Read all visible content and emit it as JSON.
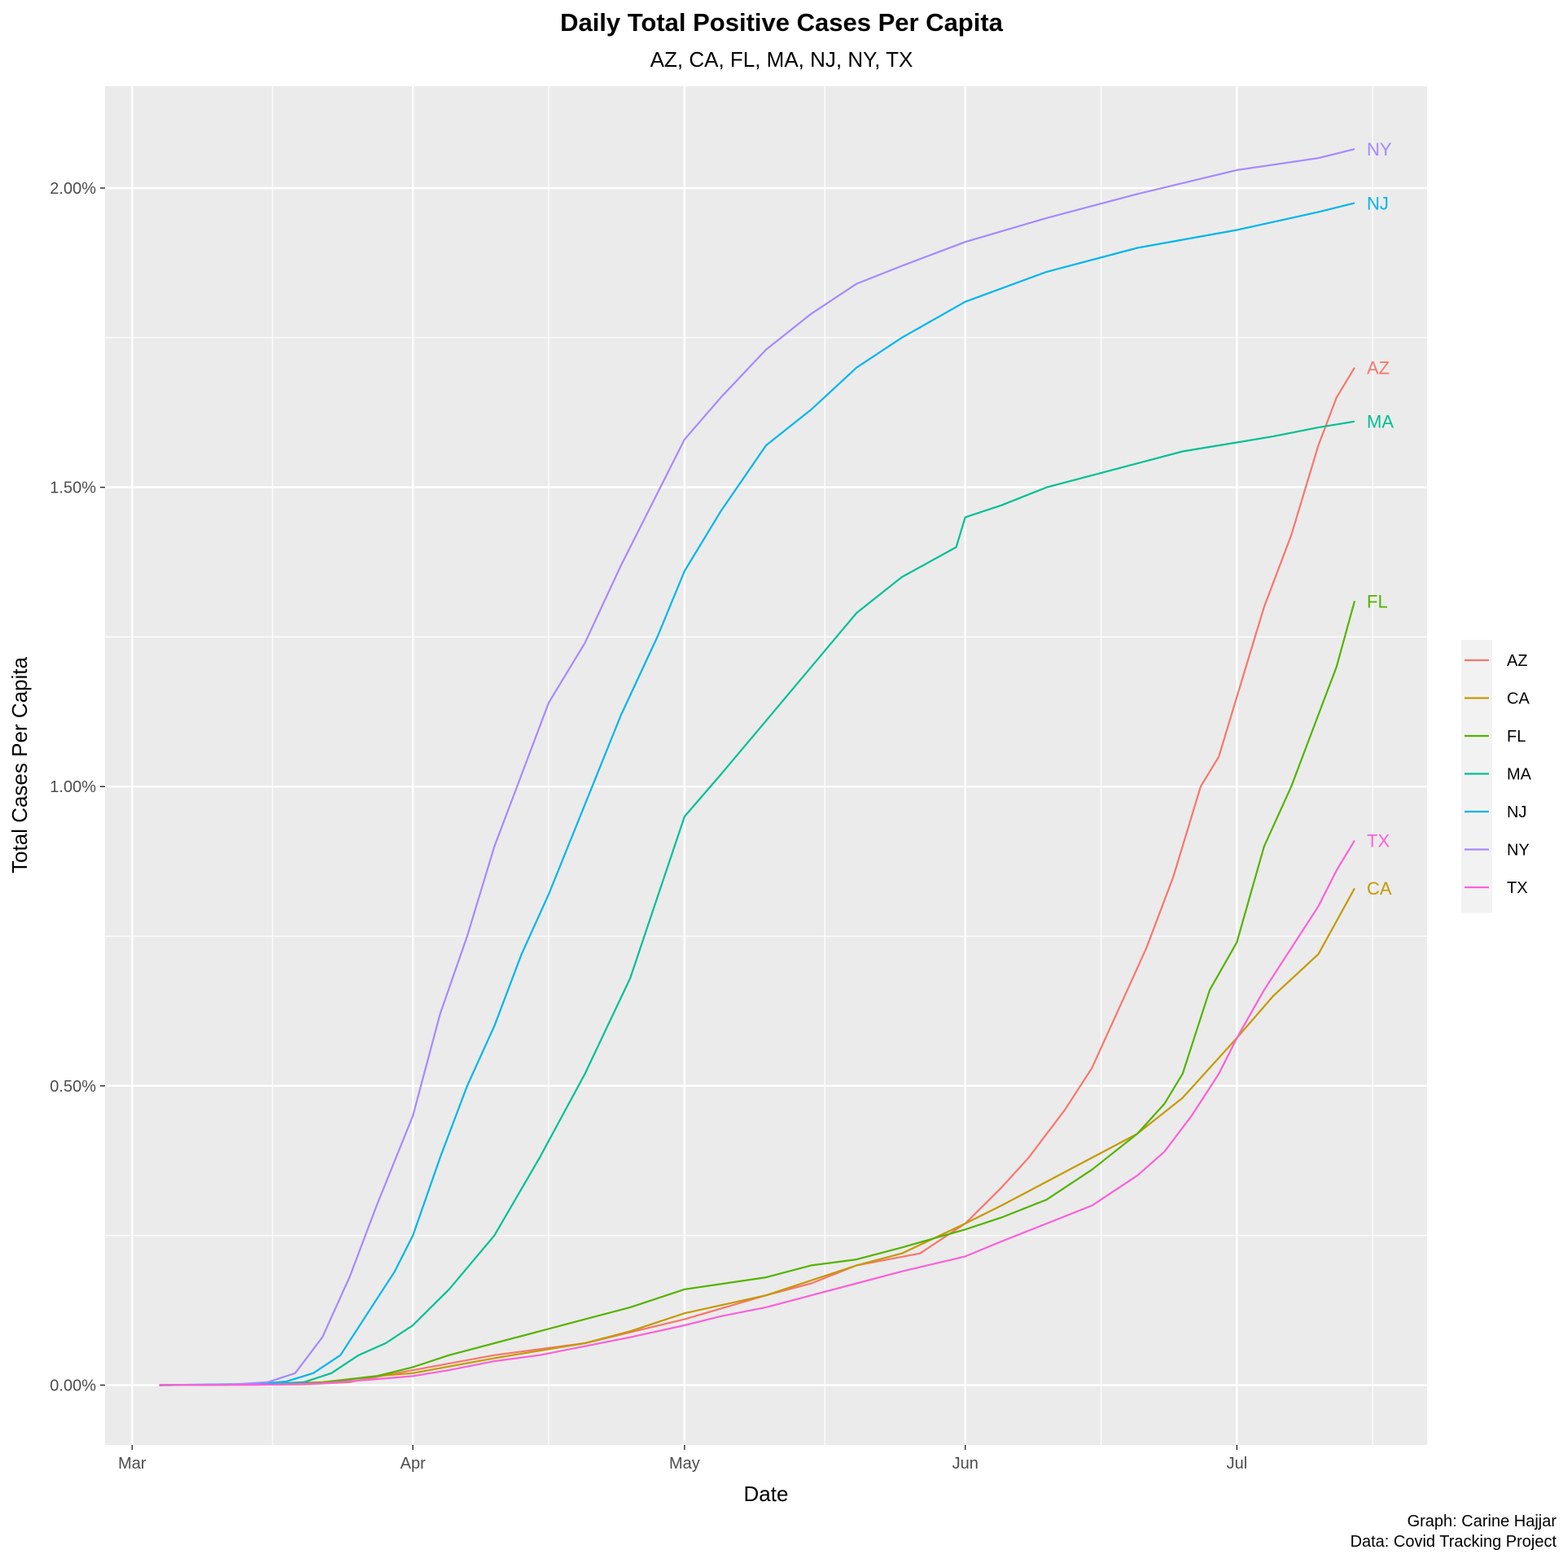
{
  "chart_data": {
    "type": "line",
    "title": "Daily Total Positive Cases Per Capita",
    "subtitle": "AZ, CA, FL, MA, NJ, NY, TX",
    "xlabel": "Date",
    "ylabel": "Total Cases Per Capita",
    "x_ticks": [
      {
        "date": "2020-03-01",
        "label": "Mar"
      },
      {
        "date": "2020-04-01",
        "label": "Apr"
      },
      {
        "date": "2020-05-01",
        "label": "May"
      },
      {
        "date": "2020-06-01",
        "label": "Jun"
      },
      {
        "date": "2020-07-01",
        "label": "Jul"
      }
    ],
    "xlim": [
      "2020-02-27",
      "2020-07-22"
    ],
    "y_ticks": [
      {
        "value": 0,
        "label": "0.00%"
      },
      {
        "value": 0.5,
        "label": "0.50%"
      },
      {
        "value": 1.0,
        "label": "1.00%"
      },
      {
        "value": 1.5,
        "label": "1.50%"
      },
      {
        "value": 2.0,
        "label": "2.00%"
      }
    ],
    "ylim": [
      -0.1,
      2.17
    ],
    "grid": true,
    "legend_position": "right",
    "series": [
      {
        "name": "AZ",
        "color": "#F8766D",
        "points": [
          [
            "2020-03-04",
            0
          ],
          [
            "2020-03-20",
            0.001
          ],
          [
            "2020-03-25",
            0.005
          ],
          [
            "2020-04-01",
            0.025
          ],
          [
            "2020-04-10",
            0.05
          ],
          [
            "2020-04-20",
            0.07
          ],
          [
            "2020-05-01",
            0.11
          ],
          [
            "2020-05-10",
            0.15
          ],
          [
            "2020-05-15",
            0.17
          ],
          [
            "2020-05-20",
            0.2
          ],
          [
            "2020-05-27",
            0.22
          ],
          [
            "2020-06-01",
            0.27
          ],
          [
            "2020-06-05",
            0.33
          ],
          [
            "2020-06-08",
            0.38
          ],
          [
            "2020-06-12",
            0.46
          ],
          [
            "2020-06-15",
            0.53
          ],
          [
            "2020-06-18",
            0.63
          ],
          [
            "2020-06-21",
            0.73
          ],
          [
            "2020-06-24",
            0.85
          ],
          [
            "2020-06-27",
            1.0
          ],
          [
            "2020-06-29",
            1.05
          ],
          [
            "2020-07-01",
            1.15
          ],
          [
            "2020-07-04",
            1.3
          ],
          [
            "2020-07-07",
            1.42
          ],
          [
            "2020-07-10",
            1.57
          ],
          [
            "2020-07-12",
            1.65
          ],
          [
            "2020-07-14",
            1.7
          ]
        ]
      },
      {
        "name": "CA",
        "color": "#C49A00",
        "points": [
          [
            "2020-03-04",
            0
          ],
          [
            "2020-03-15",
            0.001
          ],
          [
            "2020-03-22",
            0.005
          ],
          [
            "2020-03-28",
            0.015
          ],
          [
            "2020-04-01",
            0.02
          ],
          [
            "2020-04-10",
            0.045
          ],
          [
            "2020-04-20",
            0.07
          ],
          [
            "2020-04-25",
            0.09
          ],
          [
            "2020-05-01",
            0.12
          ],
          [
            "2020-05-10",
            0.15
          ],
          [
            "2020-05-20",
            0.2
          ],
          [
            "2020-05-25",
            0.22
          ],
          [
            "2020-06-01",
            0.27
          ],
          [
            "2020-06-05",
            0.3
          ],
          [
            "2020-06-10",
            0.34
          ],
          [
            "2020-06-15",
            0.38
          ],
          [
            "2020-06-20",
            0.42
          ],
          [
            "2020-06-25",
            0.48
          ],
          [
            "2020-07-01",
            0.58
          ],
          [
            "2020-07-05",
            0.65
          ],
          [
            "2020-07-10",
            0.72
          ],
          [
            "2020-07-14",
            0.83
          ]
        ]
      },
      {
        "name": "FL",
        "color": "#53B400",
        "points": [
          [
            "2020-03-04",
            0
          ],
          [
            "2020-03-15",
            0.001
          ],
          [
            "2020-03-22",
            0.004
          ],
          [
            "2020-03-28",
            0.015
          ],
          [
            "2020-04-01",
            0.03
          ],
          [
            "2020-04-05",
            0.05
          ],
          [
            "2020-04-10",
            0.07
          ],
          [
            "2020-04-15",
            0.09
          ],
          [
            "2020-04-20",
            0.11
          ],
          [
            "2020-04-25",
            0.13
          ],
          [
            "2020-05-01",
            0.16
          ],
          [
            "2020-05-10",
            0.18
          ],
          [
            "2020-05-15",
            0.2
          ],
          [
            "2020-05-20",
            0.21
          ],
          [
            "2020-05-25",
            0.23
          ],
          [
            "2020-06-01",
            0.26
          ],
          [
            "2020-06-05",
            0.28
          ],
          [
            "2020-06-10",
            0.31
          ],
          [
            "2020-06-15",
            0.36
          ],
          [
            "2020-06-20",
            0.42
          ],
          [
            "2020-06-23",
            0.47
          ],
          [
            "2020-06-25",
            0.52
          ],
          [
            "2020-06-28",
            0.66
          ],
          [
            "2020-07-01",
            0.74
          ],
          [
            "2020-07-04",
            0.9
          ],
          [
            "2020-07-07",
            1.0
          ],
          [
            "2020-07-10",
            1.12
          ],
          [
            "2020-07-12",
            1.2
          ],
          [
            "2020-07-14",
            1.31
          ]
        ]
      },
      {
        "name": "MA",
        "color": "#00C094",
        "points": [
          [
            "2020-03-04",
            0
          ],
          [
            "2020-03-15",
            0.001
          ],
          [
            "2020-03-20",
            0.005
          ],
          [
            "2020-03-23",
            0.02
          ],
          [
            "2020-03-26",
            0.05
          ],
          [
            "2020-03-29",
            0.07
          ],
          [
            "2020-04-01",
            0.1
          ],
          [
            "2020-04-05",
            0.16
          ],
          [
            "2020-04-10",
            0.25
          ],
          [
            "2020-04-15",
            0.38
          ],
          [
            "2020-04-20",
            0.52
          ],
          [
            "2020-04-25",
            0.68
          ],
          [
            "2020-05-01",
            0.95
          ],
          [
            "2020-05-05",
            1.02
          ],
          [
            "2020-05-10",
            1.11
          ],
          [
            "2020-05-15",
            1.2
          ],
          [
            "2020-05-20",
            1.29
          ],
          [
            "2020-05-25",
            1.35
          ],
          [
            "2020-05-31",
            1.4
          ],
          [
            "2020-06-01",
            1.45
          ],
          [
            "2020-06-05",
            1.47
          ],
          [
            "2020-06-10",
            1.5
          ],
          [
            "2020-06-15",
            1.52
          ],
          [
            "2020-06-20",
            1.54
          ],
          [
            "2020-06-25",
            1.56
          ],
          [
            "2020-07-01",
            1.575
          ],
          [
            "2020-07-05",
            1.585
          ],
          [
            "2020-07-10",
            1.6
          ],
          [
            "2020-07-14",
            1.61
          ]
        ]
      },
      {
        "name": "NJ",
        "color": "#00B6EB",
        "points": [
          [
            "2020-03-04",
            0
          ],
          [
            "2020-03-15",
            0.002
          ],
          [
            "2020-03-18",
            0.006
          ],
          [
            "2020-03-21",
            0.02
          ],
          [
            "2020-03-24",
            0.05
          ],
          [
            "2020-03-27",
            0.12
          ],
          [
            "2020-03-30",
            0.19
          ],
          [
            "2020-04-01",
            0.25
          ],
          [
            "2020-04-04",
            0.38
          ],
          [
            "2020-04-07",
            0.5
          ],
          [
            "2020-04-10",
            0.6
          ],
          [
            "2020-04-13",
            0.72
          ],
          [
            "2020-04-16",
            0.82
          ],
          [
            "2020-04-20",
            0.97
          ],
          [
            "2020-04-24",
            1.12
          ],
          [
            "2020-04-28",
            1.25
          ],
          [
            "2020-05-01",
            1.36
          ],
          [
            "2020-05-05",
            1.46
          ],
          [
            "2020-05-10",
            1.57
          ],
          [
            "2020-05-15",
            1.63
          ],
          [
            "2020-05-20",
            1.7
          ],
          [
            "2020-05-25",
            1.75
          ],
          [
            "2020-06-01",
            1.81
          ],
          [
            "2020-06-10",
            1.86
          ],
          [
            "2020-06-20",
            1.9
          ],
          [
            "2020-07-01",
            1.93
          ],
          [
            "2020-07-10",
            1.96
          ],
          [
            "2020-07-14",
            1.975
          ]
        ]
      },
      {
        "name": "NY",
        "color": "#A58AFF",
        "points": [
          [
            "2020-03-04",
            0
          ],
          [
            "2020-03-12",
            0.001
          ],
          [
            "2020-03-16",
            0.005
          ],
          [
            "2020-03-19",
            0.02
          ],
          [
            "2020-03-22",
            0.08
          ],
          [
            "2020-03-25",
            0.18
          ],
          [
            "2020-03-28",
            0.3
          ],
          [
            "2020-04-01",
            0.45
          ],
          [
            "2020-04-04",
            0.62
          ],
          [
            "2020-04-07",
            0.75
          ],
          [
            "2020-04-10",
            0.9
          ],
          [
            "2020-04-13",
            1.02
          ],
          [
            "2020-04-16",
            1.14
          ],
          [
            "2020-04-20",
            1.24
          ],
          [
            "2020-04-24",
            1.37
          ],
          [
            "2020-04-28",
            1.49
          ],
          [
            "2020-05-01",
            1.58
          ],
          [
            "2020-05-05",
            1.65
          ],
          [
            "2020-05-10",
            1.73
          ],
          [
            "2020-05-15",
            1.79
          ],
          [
            "2020-05-20",
            1.84
          ],
          [
            "2020-05-25",
            1.87
          ],
          [
            "2020-06-01",
            1.91
          ],
          [
            "2020-06-10",
            1.95
          ],
          [
            "2020-06-20",
            1.99
          ],
          [
            "2020-07-01",
            2.03
          ],
          [
            "2020-07-10",
            2.05
          ],
          [
            "2020-07-14",
            2.065
          ]
        ]
      },
      {
        "name": "TX",
        "color": "#FB61D7",
        "points": [
          [
            "2020-03-04",
            0
          ],
          [
            "2020-03-15",
            0.0005
          ],
          [
            "2020-03-22",
            0.003
          ],
          [
            "2020-03-28",
            0.01
          ],
          [
            "2020-04-01",
            0.015
          ],
          [
            "2020-04-05",
            0.025
          ],
          [
            "2020-04-10",
            0.04
          ],
          [
            "2020-04-15",
            0.05
          ],
          [
            "2020-04-20",
            0.065
          ],
          [
            "2020-04-25",
            0.08
          ],
          [
            "2020-05-01",
            0.1
          ],
          [
            "2020-05-05",
            0.115
          ],
          [
            "2020-05-10",
            0.13
          ],
          [
            "2020-05-15",
            0.15
          ],
          [
            "2020-05-20",
            0.17
          ],
          [
            "2020-05-25",
            0.19
          ],
          [
            "2020-06-01",
            0.215
          ],
          [
            "2020-06-05",
            0.24
          ],
          [
            "2020-06-10",
            0.27
          ],
          [
            "2020-06-15",
            0.3
          ],
          [
            "2020-06-20",
            0.35
          ],
          [
            "2020-06-23",
            0.39
          ],
          [
            "2020-06-26",
            0.45
          ],
          [
            "2020-06-29",
            0.52
          ],
          [
            "2020-07-01",
            0.58
          ],
          [
            "2020-07-04",
            0.66
          ],
          [
            "2020-07-07",
            0.73
          ],
          [
            "2020-07-10",
            0.8
          ],
          [
            "2020-07-12",
            0.86
          ],
          [
            "2020-07-14",
            0.91
          ]
        ]
      }
    ],
    "legend_order": [
      "AZ",
      "CA",
      "FL",
      "MA",
      "NJ",
      "NY",
      "TX"
    ],
    "caption_lines": [
      "Graph: Carine Hajjar",
      "Data: Covid Tracking Project"
    ]
  }
}
